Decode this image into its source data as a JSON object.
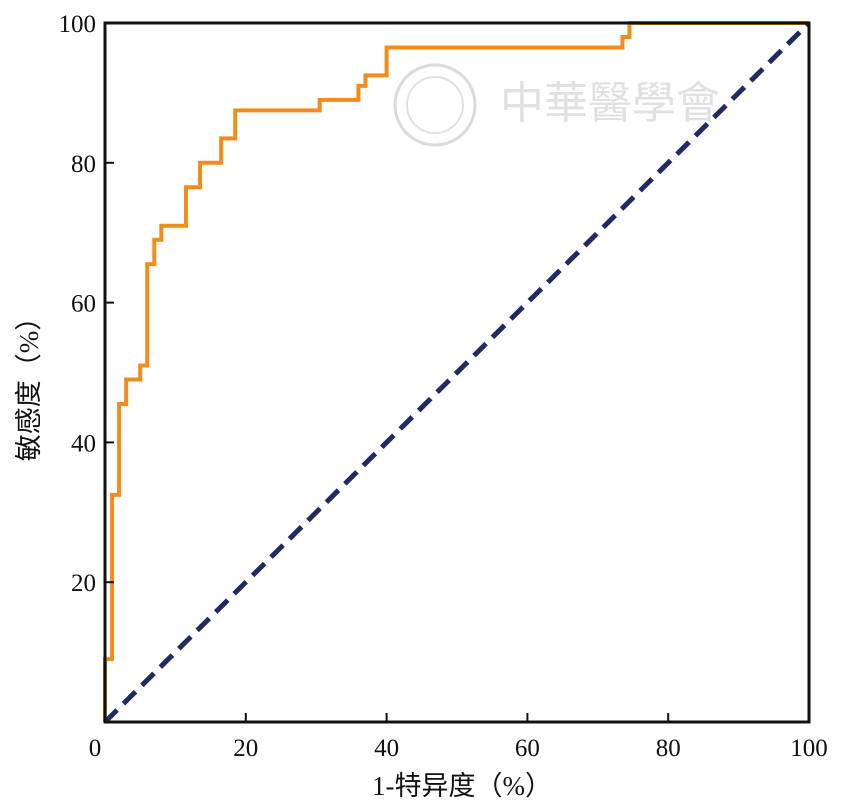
{
  "chart_data": {
    "type": "line",
    "title": "",
    "xlabel": "1-特异度（%）",
    "ylabel": "敏感度（%）",
    "xlim": [
      0,
      100
    ],
    "ylim": [
      0,
      100
    ],
    "x_ticks": [
      "0",
      "20",
      "40",
      "60",
      "80",
      "100"
    ],
    "y_ticks": [
      "20",
      "40",
      "60",
      "80",
      "100"
    ],
    "y_tick_values": [
      20,
      40,
      60,
      80,
      100
    ],
    "x_tick_values": [
      0,
      20,
      40,
      60,
      80,
      100
    ],
    "grid": false,
    "legend": "none",
    "series": [
      {
        "color": "#f28c1c",
        "style": "step",
        "points": [
          [
            0,
            0
          ],
          [
            0,
            9
          ],
          [
            1,
            9
          ],
          [
            1,
            32.5
          ],
          [
            2,
            32.5
          ],
          [
            2,
            45.5
          ],
          [
            3,
            45.5
          ],
          [
            3,
            49
          ],
          [
            5,
            49
          ],
          [
            5,
            51
          ],
          [
            6,
            51
          ],
          [
            6,
            65.5
          ],
          [
            7,
            65.5
          ],
          [
            7,
            69
          ],
          [
            8,
            69
          ],
          [
            8,
            71
          ],
          [
            11.5,
            71
          ],
          [
            11.5,
            76.5
          ],
          [
            13.5,
            76.5
          ],
          [
            13.5,
            80
          ],
          [
            16.5,
            80
          ],
          [
            16.5,
            83.5
          ],
          [
            18.5,
            83.5
          ],
          [
            18.5,
            87.5
          ],
          [
            30.5,
            87.5
          ],
          [
            30.5,
            89
          ],
          [
            36,
            89
          ],
          [
            36,
            91
          ],
          [
            37,
            91
          ],
          [
            37,
            92.5
          ],
          [
            40,
            92.5
          ],
          [
            40,
            96.5
          ],
          [
            73.5,
            96.5
          ],
          [
            73.5,
            98
          ],
          [
            74.5,
            98
          ],
          [
            74.5,
            100
          ],
          [
            100,
            100
          ]
        ]
      },
      {
        "color": "#1f2a66",
        "style": "dashed",
        "points": [
          [
            0,
            0
          ],
          [
            100,
            100
          ]
        ]
      }
    ]
  },
  "watermark": {
    "text": "中華醫學會"
  }
}
